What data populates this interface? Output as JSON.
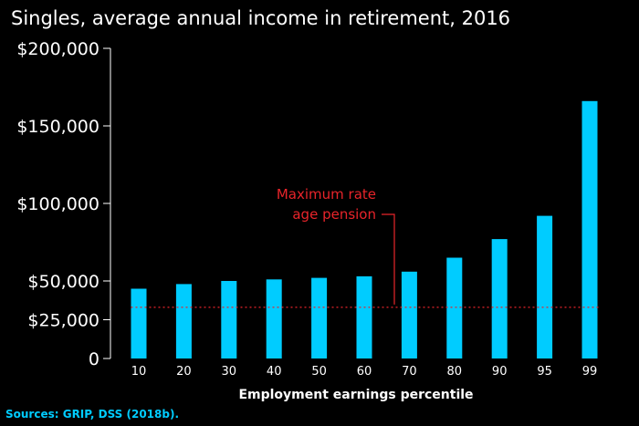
{
  "chart_data": {
    "type": "bar",
    "title": "Singles, average annual income in retirement, 2016",
    "xlabel": "Employment earnings percentile",
    "ylabel": "",
    "categories": [
      "10",
      "20",
      "30",
      "40",
      "50",
      "60",
      "70",
      "80",
      "90",
      "95",
      "99"
    ],
    "values": [
      45000,
      48000,
      50000,
      51000,
      52000,
      53000,
      56000,
      65000,
      77000,
      92000,
      166000
    ],
    "ylim": [
      0,
      200000
    ],
    "yticks": [
      {
        "value": 0,
        "label": "0"
      },
      {
        "value": 25000,
        "label": "$25,000"
      },
      {
        "value": 50000,
        "label": "$50,000"
      },
      {
        "value": 100000,
        "label": "$100,000"
      },
      {
        "value": 150000,
        "label": "$150,000"
      },
      {
        "value": 200000,
        "label": "$200,000"
      }
    ],
    "reference_line": {
      "value": 33000,
      "label_line1": "Maximum rate",
      "label_line2": "age pension",
      "style": "dotted"
    },
    "source": "Sources: GRIP, DSS (2018b).",
    "colors": {
      "background": "#000000",
      "bar": "#00ccff",
      "text": "#ffffff",
      "reference": "#e8242a",
      "source": "#00ccff"
    }
  }
}
